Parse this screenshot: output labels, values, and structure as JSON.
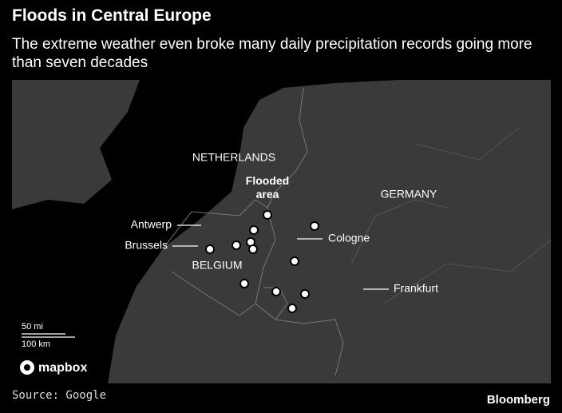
{
  "header": {
    "title": "Floods in Central Europe",
    "subtitle": "The extreme weather even broke many daily precipitation records going more than seven decades"
  },
  "map": {
    "countries": [
      "NETHERLANDS",
      "GERMANY",
      "BELGIUM"
    ],
    "flooded_label": "Flooded area",
    "cities": [
      "Antwerp",
      "Brussels",
      "Cologne",
      "Frankfurt"
    ],
    "scale": [
      "50 mi",
      "100 km"
    ],
    "logo": "mapbox"
  },
  "footer": {
    "source": "Source: Google",
    "brand": "Bloomberg"
  }
}
